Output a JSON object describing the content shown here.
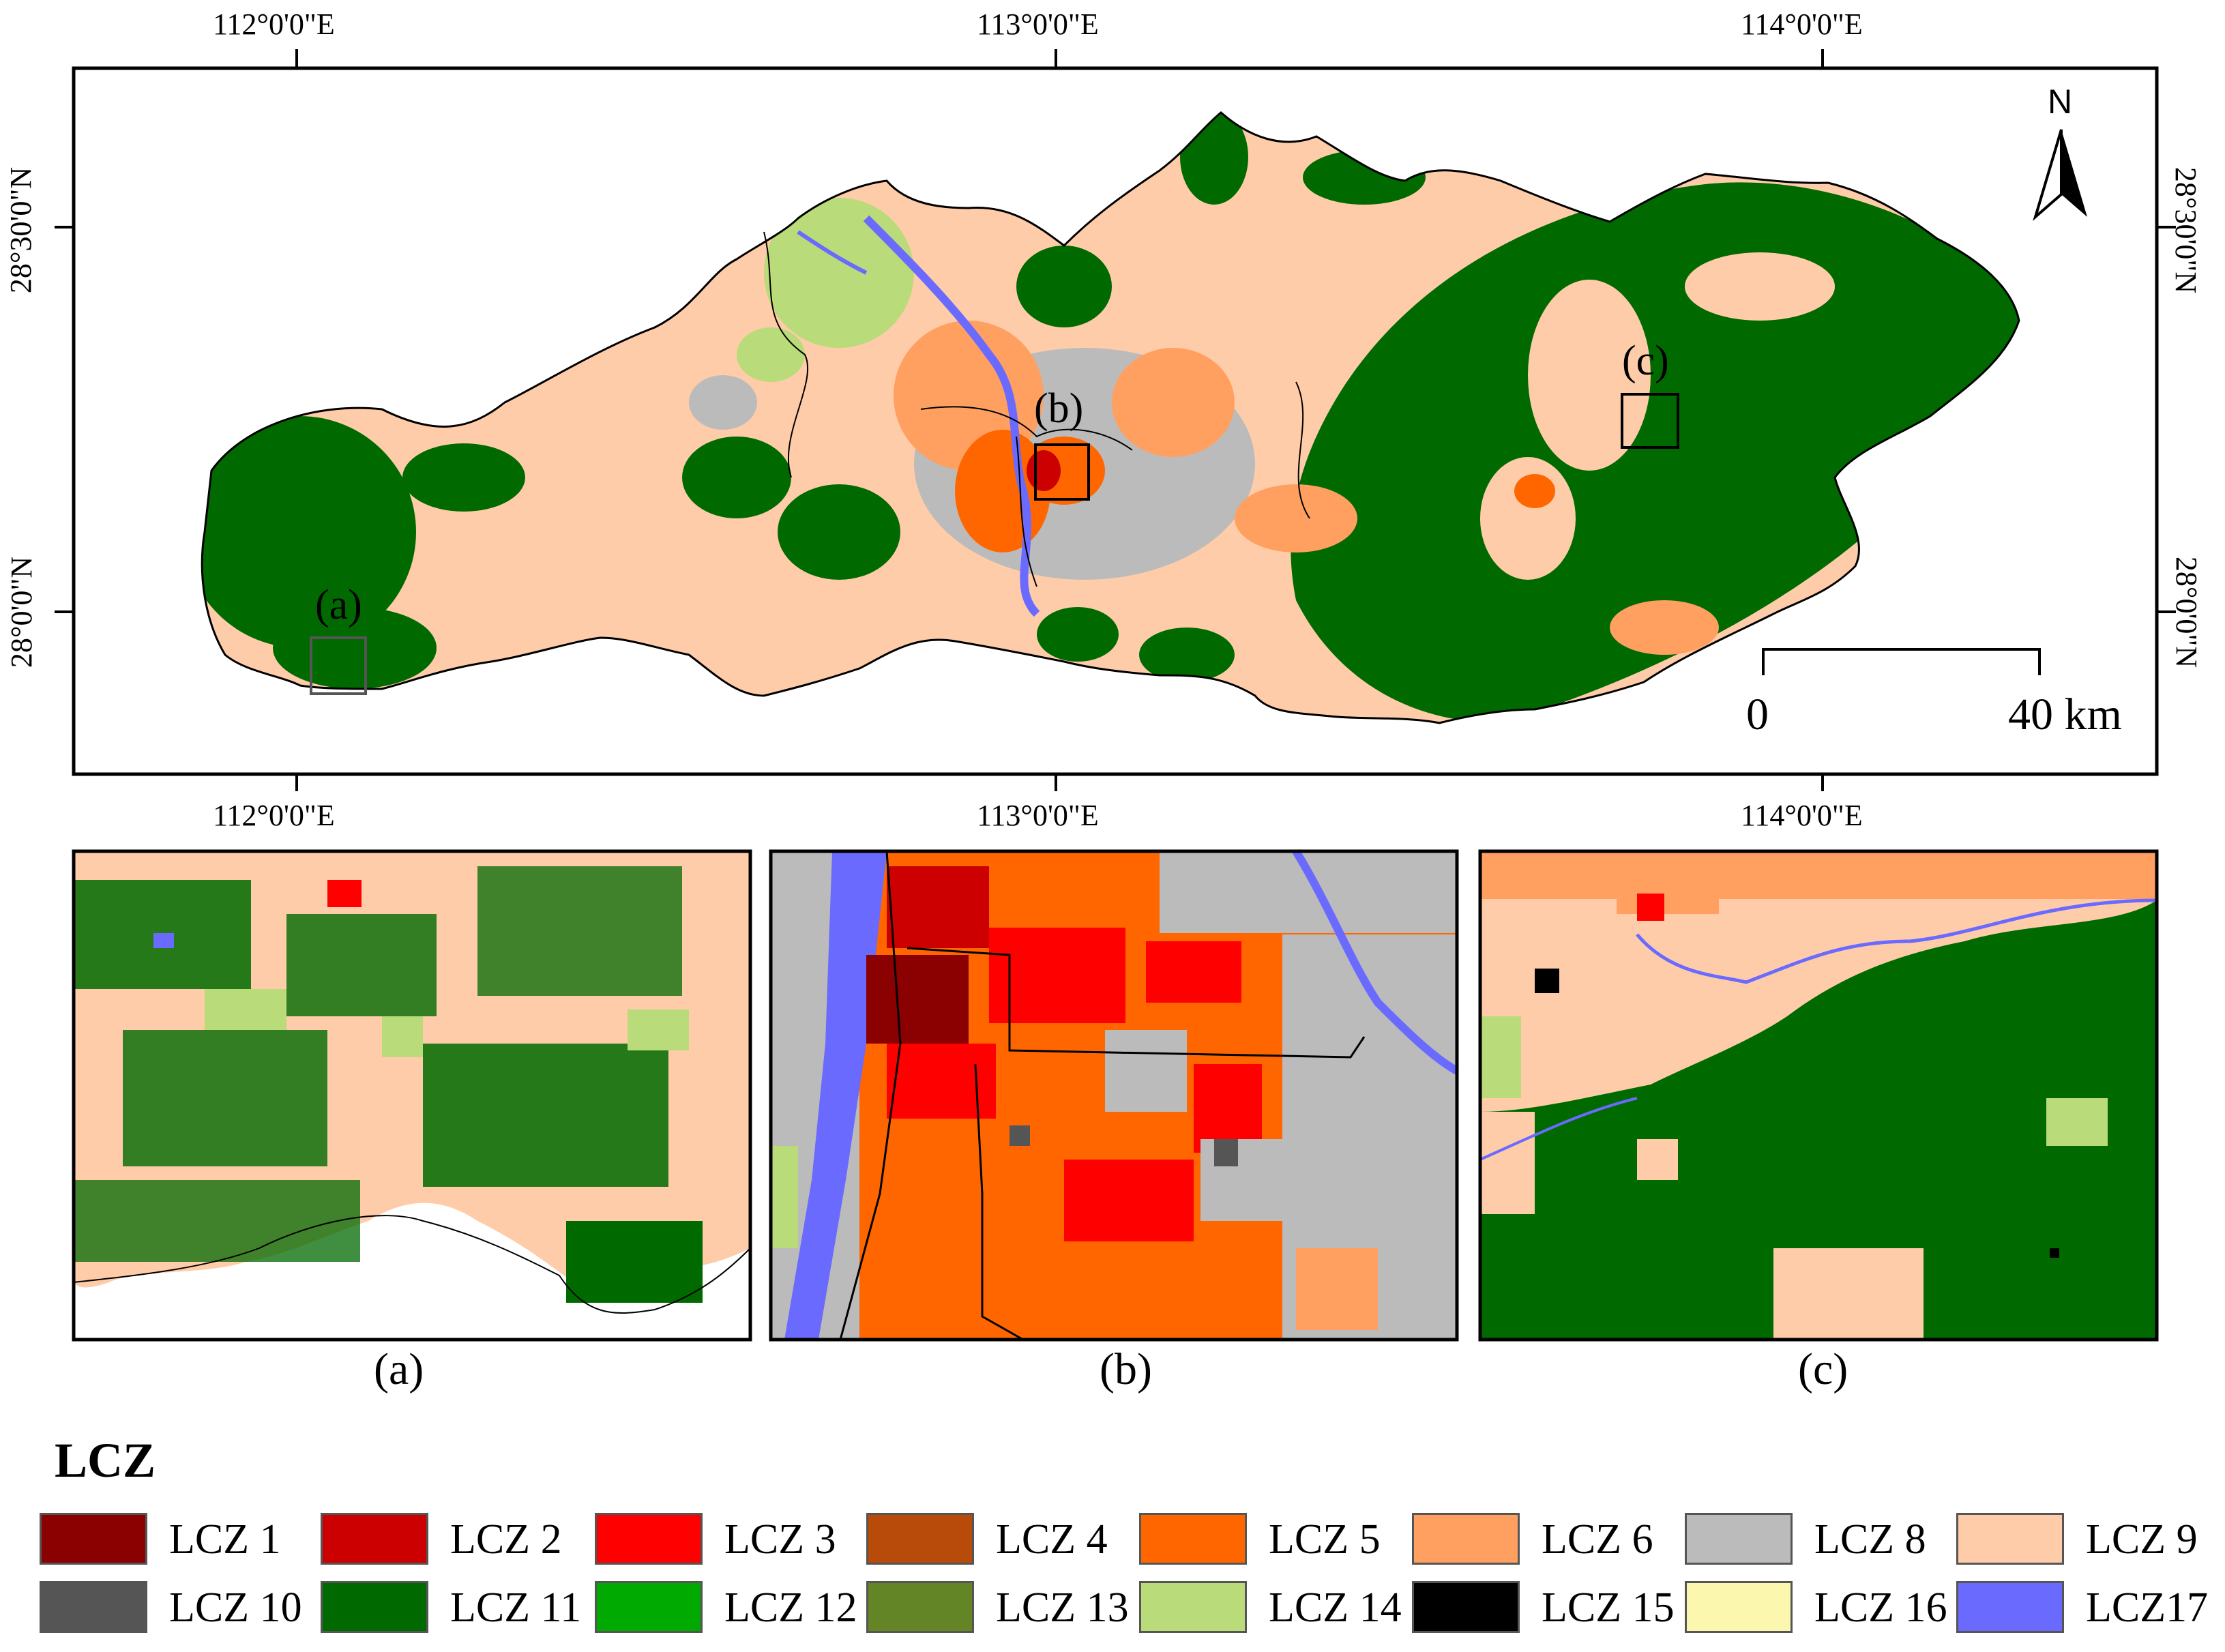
{
  "main_map": {
    "coord_labels": {
      "top_lon": [
        "112°0'0\"E",
        "113°0'0\"E",
        "114°0'0\"E"
      ],
      "bottom_lon": [
        "112°0'0\"E",
        "113°0'0\"E",
        "114°0'0\"E"
      ],
      "left_lat": [
        "28°30'0\"N",
        "28°0'0\"N"
      ],
      "right_lat": [
        "28°30'0\"N",
        "28°0'0\"N"
      ]
    },
    "inset_markers": [
      "(a)",
      "(b)",
      "(c)"
    ],
    "north_arrow": {
      "label": "N",
      "icon": "north-arrow-icon"
    },
    "scale_bar": {
      "start_label": "0",
      "end_label": "40 km"
    }
  },
  "panels": [
    {
      "label": "(a)"
    },
    {
      "label": "(b)"
    },
    {
      "label": "(c)"
    }
  ],
  "legend": {
    "title": "LCZ",
    "items": [
      {
        "label": "LCZ 1",
        "color": "#8b0000"
      },
      {
        "label": "LCZ 2",
        "color": "#cc0000"
      },
      {
        "label": "LCZ 3",
        "color": "#ff0000"
      },
      {
        "label": "LCZ 4",
        "color": "#b84a0a"
      },
      {
        "label": "LCZ 5",
        "color": "#ff6600"
      },
      {
        "label": "LCZ 6",
        "color": "#ffa060"
      },
      {
        "label": "LCZ 8",
        "color": "#bbbbbb"
      },
      {
        "label": "LCZ 9",
        "color": "#ffccaa"
      },
      {
        "label": "LCZ 10",
        "color": "#555555"
      },
      {
        "label": "LCZ 11",
        "color": "#006a00"
      },
      {
        "label": "LCZ 12",
        "color": "#00aa00"
      },
      {
        "label": "LCZ 13",
        "color": "#648525"
      },
      {
        "label": "LCZ 14",
        "color": "#b9db79"
      },
      {
        "label": "LCZ 15",
        "color": "#000000"
      },
      {
        "label": "LCZ 16",
        "color": "#fbf7ae"
      },
      {
        "label": "LCZ17",
        "color": "#6a6aff"
      }
    ]
  }
}
